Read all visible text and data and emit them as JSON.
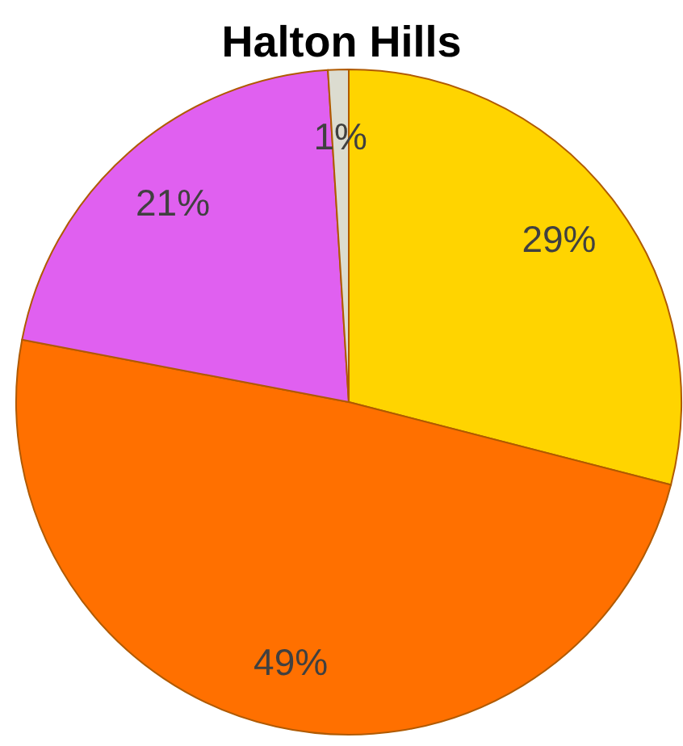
{
  "chart_data": {
    "type": "pie",
    "title": "Halton Hills",
    "categories": [
      null,
      null,
      null,
      null
    ],
    "values": [
      29,
      49,
      21,
      1
    ],
    "colors": [
      "#ffd400",
      "#ff7000",
      "#e060f0",
      "#dcdcd0"
    ],
    "value_labels": [
      "29%",
      "49%",
      "21%",
      "1%"
    ],
    "legend": false
  }
}
